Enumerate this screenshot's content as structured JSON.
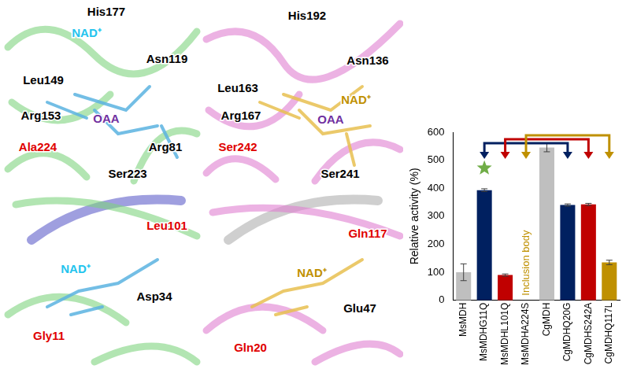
{
  "panels": [
    {
      "labels": [
        {
          "text": "His177",
          "color": "#000000"
        },
        {
          "text": "NAD⁺",
          "color": "#22c4ee"
        },
        {
          "text": "Asn119",
          "color": "#000000"
        },
        {
          "text": "Leu149",
          "color": "#000000"
        },
        {
          "text": "Arg153",
          "color": "#000000"
        },
        {
          "text": "OAA",
          "color": "#7030a0"
        },
        {
          "text": "Ala224",
          "color": "#e00000"
        },
        {
          "text": "Arg81",
          "color": "#000000"
        },
        {
          "text": "Ser223",
          "color": "#000000"
        }
      ]
    },
    {
      "labels": [
        {
          "text": "His192",
          "color": "#000000"
        },
        {
          "text": "Asn136",
          "color": "#000000"
        },
        {
          "text": "NAD⁺",
          "color": "#c09000"
        },
        {
          "text": "Leu163",
          "color": "#000000"
        },
        {
          "text": "Arg167",
          "color": "#000000"
        },
        {
          "text": "OAA",
          "color": "#7030a0"
        },
        {
          "text": "Ser242",
          "color": "#e00000"
        },
        {
          "text": "Ser241",
          "color": "#000000"
        }
      ]
    },
    {
      "labels": [
        {
          "text": "Leu101",
          "color": "#e00000"
        },
        {
          "text": "NAD⁺",
          "color": "#22c4ee"
        },
        {
          "text": "Gly11",
          "color": "#e00000"
        },
        {
          "text": "Asp34",
          "color": "#000000"
        }
      ]
    },
    {
      "labels": [
        {
          "text": "Gln117",
          "color": "#e00000"
        },
        {
          "text": "NAD⁺",
          "color": "#c09000"
        },
        {
          "text": "Gln20",
          "color": "#e00000"
        },
        {
          "text": "Glu47",
          "color": "#000000"
        }
      ]
    }
  ],
  "chart_data": {
    "type": "bar",
    "y_label": "Relative activity (%)",
    "categories": [
      "MsMDH",
      "MsMDHG11Q",
      "MsMDHL101Q",
      "MsMDHA224S",
      "CgMDH",
      "CgMDHQ20G",
      "CgMDHS242A",
      "CgMDHQ117L"
    ],
    "values": [
      100,
      393,
      90,
      null,
      545,
      340,
      342,
      135
    ],
    "errors": [
      30,
      5,
      4,
      null,
      15,
      4,
      4,
      8
    ],
    "colors": [
      "#bfbfbf",
      "#002060",
      "#c00000",
      "#bf9000",
      "#bfbfbf",
      "#002060",
      "#c00000",
      "#bf9000"
    ],
    "annotations": [
      {
        "text": "Inclusion body",
        "category": "MsMDHA224S",
        "color": "#bf9000"
      }
    ],
    "ylim": [
      0,
      600
    ],
    "yticks": [
      0,
      100,
      200,
      300,
      400,
      500,
      600
    ],
    "grid": false
  }
}
